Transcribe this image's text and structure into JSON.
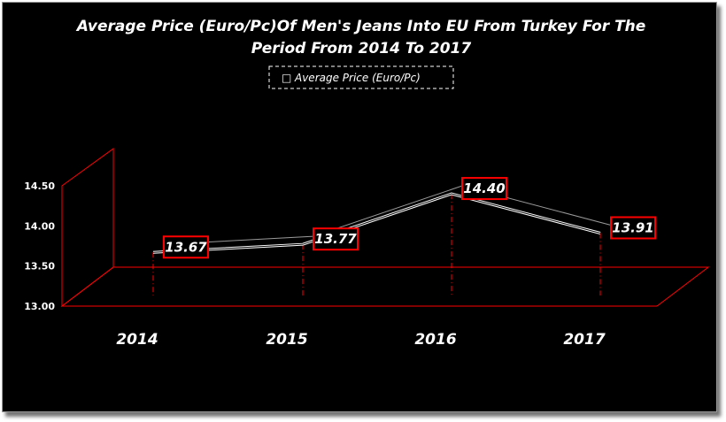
{
  "chart_data": {
    "type": "line",
    "title_line1": "Average Price (Euro/Pc)Of Men's Jeans Into EU From Turkey For The",
    "title_line2": "Period From 2014 To 2017",
    "categories": [
      "2014",
      "2015",
      "2016",
      "2017"
    ],
    "series": [
      {
        "name": "Average Price (Euro/Pc)",
        "values": [
          13.67,
          13.77,
          14.4,
          13.91
        ],
        "labels": [
          "13.67",
          "13.77",
          "14.40",
          "13.91"
        ]
      }
    ],
    "legend_marker": "□",
    "y_ticks": [
      "13.00",
      "13.50",
      "14.00",
      "14.50"
    ],
    "ylim": [
      13.0,
      14.5
    ],
    "xlabel": "",
    "ylabel": "",
    "legend_position": "top",
    "grid": false,
    "three_d": true,
    "colors": {
      "background": "#000000",
      "axis": "#ff0000",
      "line": "#ffffff",
      "label_border": "#ff0000",
      "label_fill": "#000000",
      "text": "#ffffff"
    }
  }
}
